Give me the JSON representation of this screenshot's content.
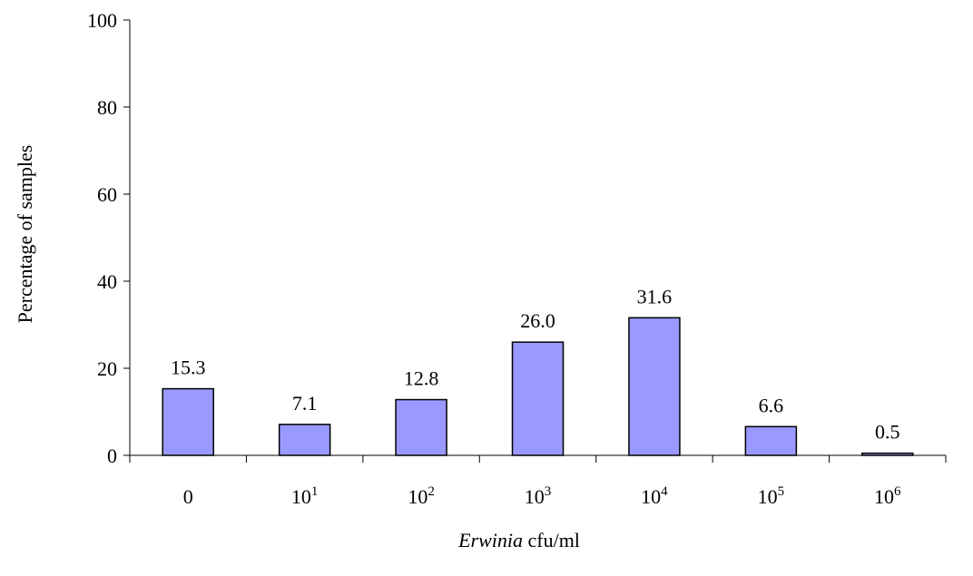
{
  "chart_data": {
    "type": "bar",
    "categories": [
      {
        "base": "0",
        "exp": ""
      },
      {
        "base": "10",
        "exp": "1"
      },
      {
        "base": "10",
        "exp": "2"
      },
      {
        "base": "10",
        "exp": "3"
      },
      {
        "base": "10",
        "exp": "4"
      },
      {
        "base": "10",
        "exp": "5"
      },
      {
        "base": "10",
        "exp": "6"
      }
    ],
    "values": [
      15.3,
      7.1,
      12.8,
      26.0,
      31.6,
      6.6,
      0.5
    ],
    "data_labels": [
      "15.3",
      "7.1",
      "12.8",
      "26.0",
      "31.6",
      "6.6",
      "0.5"
    ],
    "xlabel": {
      "italic": "Erwinia",
      "rest": " cfu/ml"
    },
    "ylabel": "Percentage of samples",
    "ylim": [
      0,
      100
    ],
    "yticks": [
      0,
      20,
      40,
      60,
      80,
      100
    ],
    "grid": false,
    "colors": {
      "bar_fill": "#9999ff",
      "bar_stroke": "#000000",
      "axis": "#000000"
    }
  }
}
